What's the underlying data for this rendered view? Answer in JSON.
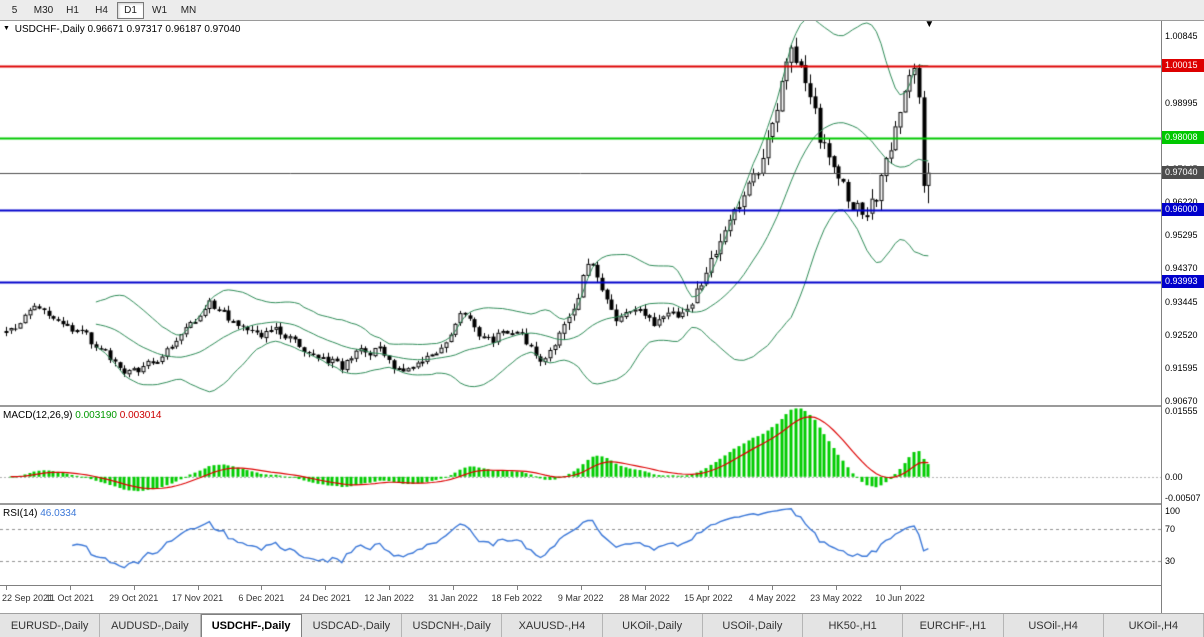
{
  "toolbar": {
    "timeframes": [
      {
        "label": "5",
        "active": false
      },
      {
        "label": "M30",
        "active": false
      },
      {
        "label": "H1",
        "active": false
      },
      {
        "label": "H4",
        "active": false
      },
      {
        "label": "D1",
        "active": true
      },
      {
        "label": "W1",
        "active": false
      },
      {
        "label": "MN",
        "active": false
      }
    ]
  },
  "price_pane": {
    "title": {
      "symbol": "USDCHF-,Daily",
      "open": "0.96671",
      "high": "0.97317",
      "low": "0.96187",
      "close": "0.97040"
    }
  },
  "macd": {
    "label": "MACD(12,26,9)",
    "value_main": "0.003190",
    "value_signal": "0.003014"
  },
  "rsi": {
    "label": "RSI(14)",
    "value": "46.0334"
  },
  "tabs": {
    "items": [
      "EURUSD-,Daily",
      "AUDUSD-,Daily",
      "USDCHF-,Daily",
      "USDCAD-,Daily",
      "USDCNH-,Daily",
      "XAUUSD-,H4",
      "UKOil-,Daily",
      "USOil-,Daily",
      "HK50-,H1",
      "EURCHF-,H1",
      "USOil-,H4",
      "UKOil-,H4"
    ],
    "active_index": 2
  },
  "chart_data": {
    "type": "candlestick",
    "title": "USDCHF-,Daily",
    "ohlc_display": {
      "open": 0.96671,
      "high": 0.97317,
      "low": 0.96187,
      "close": 0.9704
    },
    "current_price": 0.9704,
    "ylim": [
      0.9056,
      1.0127
    ],
    "y_ticks": [
      1.00845,
      0.9992,
      0.98995,
      0.9807,
      0.97145,
      0.9622,
      0.95295,
      0.9437,
      0.93445,
      0.9252,
      0.91595,
      0.9067
    ],
    "hlines": [
      {
        "price": 1.00015,
        "label": "1.00015",
        "color": "#dd0000",
        "width": 2
      },
      {
        "price": 0.98008,
        "label": "0.98008",
        "color": "#00c800",
        "width": 2
      },
      {
        "price": 0.9704,
        "label": "0.97040",
        "color": "#4d4d4d",
        "width": 1
      },
      {
        "price": 0.96,
        "label": "0.96000",
        "color": "#0000cc",
        "width": 2
      },
      {
        "price": 0.93993,
        "label": "0.93993",
        "color": "#0000cc",
        "width": 2
      }
    ],
    "candles_count": 196,
    "price_keypoints": [
      [
        0,
        0.926
      ],
      [
        4,
        0.93
      ],
      [
        7,
        0.9325
      ],
      [
        10,
        0.9298
      ],
      [
        13,
        0.928
      ],
      [
        17,
        0.9232
      ],
      [
        21,
        0.92
      ],
      [
        25,
        0.9152
      ],
      [
        28,
        0.914
      ],
      [
        32,
        0.9188
      ],
      [
        36,
        0.9232
      ],
      [
        40,
        0.9298
      ],
      [
        43,
        0.9345
      ],
      [
        46,
        0.9302
      ],
      [
        50,
        0.9252
      ],
      [
        54,
        0.9238
      ],
      [
        57,
        0.9272
      ],
      [
        60,
        0.9235
      ],
      [
        64,
        0.9198
      ],
      [
        68,
        0.9178
      ],
      [
        71,
        0.916
      ],
      [
        74,
        0.9215
      ],
      [
        78,
        0.9208
      ],
      [
        81,
        0.9178
      ],
      [
        84,
        0.9132
      ],
      [
        88,
        0.9172
      ],
      [
        92,
        0.9235
      ],
      [
        96,
        0.9312
      ],
      [
        99,
        0.9255
      ],
      [
        102,
        0.9232
      ],
      [
        105,
        0.9262
      ],
      [
        108,
        0.9252
      ],
      [
        111,
        0.9205
      ],
      [
        114,
        0.9178
      ],
      [
        117,
        0.9258
      ],
      [
        120,
        0.9372
      ],
      [
        123,
        0.9452
      ],
      [
        126,
        0.9345
      ],
      [
        129,
        0.9292
      ],
      [
        132,
        0.9322
      ],
      [
        135,
        0.9312
      ],
      [
        137,
        0.9262
      ],
      [
        140,
        0.9332
      ],
      [
        143,
        0.9302
      ],
      [
        146,
        0.9398
      ],
      [
        149,
        0.9452
      ],
      [
        152,
        0.9548
      ],
      [
        155,
        0.9602
      ],
      [
        158,
        0.9688
      ],
      [
        160,
        0.9725
      ],
      [
        162,
        0.9848
      ],
      [
        164,
        0.9965
      ],
      [
        166,
        1.0052
      ],
      [
        168,
        1.0012
      ],
      [
        170,
        0.9885
      ],
      [
        172,
        0.9762
      ],
      [
        175,
        0.9692
      ],
      [
        178,
        0.9612
      ],
      [
        181,
        0.9598
      ],
      [
        184,
        0.9658
      ],
      [
        186,
        0.9748
      ],
      [
        188,
        0.9862
      ],
      [
        190,
        0.9928
      ],
      [
        195,
        0.9704
      ]
    ],
    "tail_candles": [
      [
        0.993,
        0.9992,
        0.9912,
        0.9976
      ],
      [
        0.9976,
        1.0008,
        0.9952,
        0.9996
      ],
      [
        0.9996,
        1.0006,
        0.9896,
        0.9914
      ],
      [
        0.9914,
        0.9932,
        0.9648,
        0.9667
      ],
      [
        0.96671,
        0.97317,
        0.96187,
        0.9704
      ]
    ],
    "bollinger": {
      "period": 20,
      "deviation": 2,
      "color": "#2e8b57"
    },
    "x_labels": [
      {
        "label": "22 Sep 2021",
        "index": 0
      },
      {
        "label": "11 Oct 2021",
        "index": 13.5
      },
      {
        "label": "29 Oct 2021",
        "index": 27
      },
      {
        "label": "17 Nov 2021",
        "index": 40.5
      },
      {
        "label": "6 Dec 2021",
        "index": 54
      },
      {
        "label": "24 Dec 2021",
        "index": 67.5
      },
      {
        "label": "12 Jan 2022",
        "index": 81
      },
      {
        "label": "31 Jan 2022",
        "index": 94.5
      },
      {
        "label": "18 Feb 2022",
        "index": 108
      },
      {
        "label": "9 Mar 2022",
        "index": 121.5
      },
      {
        "label": "28 Mar 2022",
        "index": 135
      },
      {
        "label": "15 Apr 2022",
        "index": 148.5
      },
      {
        "label": "4 May 2022",
        "index": 162
      },
      {
        "label": "23 May 2022",
        "index": 175.5
      },
      {
        "label": "10 Jun 2022",
        "index": 189
      }
    ],
    "macd": {
      "params": [
        12,
        26,
        9
      ],
      "display_values": [
        0.00319,
        0.003014
      ],
      "ylim": [
        -0.0062,
        0.0165
      ],
      "ticks": [
        {
          "v": 0.01555,
          "label": "0.01555"
        },
        {
          "v": 0.0,
          "label": "0.00"
        },
        {
          "v": -0.00507,
          "label": "-0.00507"
        }
      ],
      "colors": {
        "histogram": "#00cc00",
        "signal": "#dd0000"
      }
    },
    "rsi": {
      "period": 14,
      "display_value": 46.0334,
      "ylim": [
        0,
        100
      ],
      "levels": [
        70,
        30
      ],
      "ticks": [
        {
          "v": 100,
          "label": "100"
        },
        {
          "v": 70,
          "label": "70"
        },
        {
          "v": 30,
          "label": "30"
        }
      ],
      "color": "#3c78d8"
    }
  }
}
